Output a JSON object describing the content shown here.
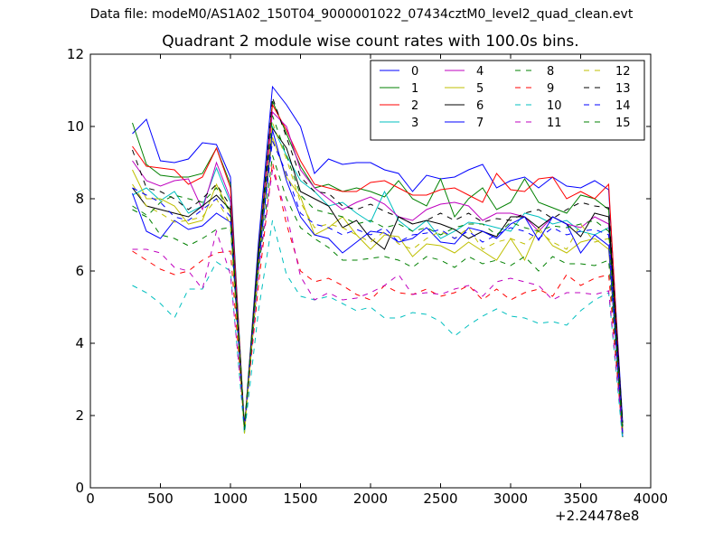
{
  "chart_data": {
    "type": "line",
    "suptitle": "Data file: modeM0/AS1A02_150T04_9000001022_07434cztM0_level2_quad_clean.evt",
    "title": "Quadrant 2 module wise count rates with 100.0s bins.",
    "xlabel": "",
    "ylabel": "",
    "x_offset_label": "+2.24478e8",
    "xlim": [
      0,
      4000
    ],
    "ylim": [
      0,
      12
    ],
    "xticks": [
      "0",
      "500",
      "1000",
      "1500",
      "2000",
      "2500",
      "3000",
      "3500",
      "4000"
    ],
    "yticks": [
      "0",
      "2",
      "4",
      "6",
      "8",
      "10",
      "12"
    ],
    "legend_position": "top-right",
    "x": [
      300,
      400,
      500,
      600,
      700,
      800,
      900,
      1000,
      1100,
      1200,
      1300,
      1400,
      1500,
      1600,
      1700,
      1800,
      1900,
      2000,
      2100,
      2200,
      2300,
      2400,
      2500,
      2600,
      2700,
      2800,
      2900,
      3000,
      3100,
      3200,
      3300,
      3400,
      3500,
      3600,
      3700,
      3800
    ],
    "series": [
      {
        "name": "0",
        "color": "#0000ff",
        "style": "solid",
        "values": [
          9.8,
          10.2,
          9.05,
          9.0,
          9.1,
          9.55,
          9.5,
          8.6,
          1.6,
          6.8,
          11.1,
          10.6,
          10.0,
          8.7,
          9.1,
          8.95,
          9.0,
          9.0,
          8.8,
          8.7,
          8.2,
          8.65,
          8.55,
          8.6,
          8.8,
          8.95,
          8.3,
          8.5,
          8.6,
          8.3,
          8.6,
          8.35,
          8.3,
          8.5,
          8.25,
          1.8
        ]
      },
      {
        "name": "1",
        "color": "#008000",
        "style": "solid",
        "values": [
          10.1,
          8.95,
          8.65,
          8.6,
          8.6,
          8.7,
          9.4,
          8.4,
          1.7,
          6.6,
          10.7,
          9.8,
          8.9,
          8.3,
          8.4,
          8.2,
          8.3,
          8.2,
          8.05,
          8.5,
          8.0,
          7.8,
          8.55,
          7.5,
          8.0,
          8.3,
          7.7,
          7.9,
          8.55,
          7.9,
          7.75,
          7.6,
          8.1,
          8.0,
          7.7,
          1.6
        ]
      },
      {
        "name": "2",
        "color": "#ff0000",
        "style": "solid",
        "values": [
          9.45,
          8.9,
          8.85,
          8.8,
          8.4,
          8.6,
          9.4,
          8.3,
          1.6,
          6.5,
          10.6,
          9.9,
          9.05,
          8.4,
          8.3,
          8.2,
          8.2,
          8.45,
          8.5,
          8.3,
          8.1,
          8.1,
          8.25,
          8.3,
          8.1,
          7.9,
          8.7,
          8.25,
          8.2,
          8.55,
          8.6,
          8.0,
          8.2,
          8.0,
          8.4,
          1.5
        ]
      },
      {
        "name": "3",
        "color": "#00bfbf",
        "style": "solid",
        "values": [
          8.1,
          8.3,
          7.95,
          8.2,
          7.6,
          7.8,
          8.85,
          7.9,
          1.5,
          6.2,
          10.0,
          9.2,
          8.5,
          8.2,
          7.8,
          7.9,
          7.6,
          7.35,
          8.2,
          7.4,
          7.1,
          7.4,
          6.9,
          7.1,
          7.35,
          7.3,
          7.2,
          7.1,
          7.6,
          7.5,
          7.3,
          7.4,
          7.1,
          7.0,
          7.2,
          1.5
        ]
      },
      {
        "name": "4",
        "color": "#bf00bf",
        "style": "solid",
        "values": [
          9.05,
          8.5,
          8.35,
          8.5,
          8.55,
          7.7,
          9.0,
          8.0,
          1.6,
          6.5,
          10.4,
          10.0,
          8.8,
          8.3,
          8.0,
          7.7,
          7.9,
          8.05,
          7.85,
          7.5,
          7.4,
          7.7,
          7.85,
          7.9,
          7.8,
          7.4,
          7.6,
          7.6,
          7.5,
          7.1,
          7.5,
          7.3,
          7.2,
          7.5,
          7.3,
          1.5
        ]
      },
      {
        "name": "5",
        "color": "#bfbf00",
        "style": "solid",
        "values": [
          8.8,
          8.0,
          8.0,
          7.8,
          7.3,
          7.4,
          8.4,
          7.6,
          1.6,
          6.3,
          9.7,
          8.6,
          8.05,
          7.0,
          7.2,
          7.5,
          7.0,
          6.6,
          7.0,
          6.95,
          6.4,
          6.75,
          6.7,
          6.5,
          6.8,
          6.55,
          6.3,
          6.9,
          6.3,
          7.2,
          6.7,
          6.5,
          6.8,
          6.9,
          6.6,
          1.6
        ]
      },
      {
        "name": "6",
        "color": "#000000",
        "style": "solid",
        "values": [
          8.3,
          7.8,
          7.7,
          7.6,
          7.5,
          7.8,
          8.1,
          7.7,
          1.6,
          6.5,
          9.95,
          9.4,
          8.2,
          8.0,
          7.8,
          7.2,
          7.4,
          6.9,
          6.6,
          7.5,
          7.3,
          7.4,
          7.3,
          7.15,
          6.9,
          7.1,
          6.95,
          7.5,
          7.5,
          7.2,
          7.5,
          7.3,
          6.95,
          7.6,
          7.5,
          1.7
        ]
      },
      {
        "name": "7",
        "color": "#0000ff",
        "style": "solid",
        "values": [
          8.15,
          7.1,
          6.9,
          7.4,
          7.15,
          7.25,
          7.6,
          7.35,
          1.6,
          6.1,
          9.9,
          8.5,
          7.5,
          7.0,
          6.9,
          6.5,
          6.8,
          7.1,
          7.05,
          6.8,
          6.9,
          7.2,
          6.8,
          6.75,
          7.2,
          7.1,
          6.9,
          7.3,
          7.5,
          6.85,
          7.5,
          7.3,
          6.5,
          7.0,
          6.7,
          1.4
        ]
      },
      {
        "name": "8",
        "color": "#008000",
        "style": "dashed",
        "values": [
          7.8,
          7.55,
          7.0,
          6.9,
          6.7,
          6.9,
          7.15,
          7.2,
          1.6,
          6.0,
          9.2,
          8.0,
          7.2,
          6.9,
          6.65,
          6.3,
          6.3,
          6.35,
          6.4,
          6.3,
          6.1,
          6.4,
          6.3,
          6.1,
          6.4,
          6.2,
          6.3,
          6.15,
          6.4,
          6.0,
          6.4,
          6.2,
          6.2,
          6.15,
          6.3,
          1.4
        ]
      },
      {
        "name": "9",
        "color": "#ff0000",
        "style": "dashed",
        "values": [
          6.55,
          6.3,
          6.05,
          5.9,
          6.0,
          6.3,
          6.5,
          6.55,
          1.7,
          5.6,
          9.0,
          7.3,
          6.0,
          5.7,
          5.8,
          5.6,
          5.35,
          5.2,
          5.6,
          5.4,
          5.35,
          5.5,
          5.3,
          5.4,
          5.6,
          5.2,
          5.5,
          5.2,
          5.4,
          5.5,
          5.3,
          5.9,
          5.6,
          5.8,
          5.9,
          1.4
        ]
      },
      {
        "name": "10",
        "color": "#00bfbf",
        "style": "dashed",
        "values": [
          5.6,
          5.4,
          5.1,
          4.7,
          5.5,
          5.5,
          6.25,
          6.0,
          1.5,
          4.9,
          7.4,
          5.9,
          5.3,
          5.2,
          5.3,
          5.1,
          4.9,
          5.0,
          4.7,
          4.7,
          4.85,
          4.8,
          4.6,
          4.2,
          4.5,
          4.75,
          4.95,
          4.75,
          4.7,
          4.55,
          4.6,
          4.5,
          4.9,
          5.2,
          5.4,
          1.3
        ]
      },
      {
        "name": "11",
        "color": "#bf00bf",
        "style": "dashed",
        "values": [
          6.6,
          6.6,
          6.5,
          6.1,
          6.0,
          5.5,
          7.1,
          5.9,
          1.7,
          6.0,
          8.8,
          7.6,
          5.85,
          5.2,
          5.4,
          5.2,
          5.25,
          5.4,
          5.6,
          5.9,
          5.35,
          5.4,
          5.35,
          5.5,
          5.6,
          5.3,
          5.7,
          5.8,
          5.7,
          5.6,
          5.2,
          5.4,
          5.4,
          5.35,
          5.45,
          1.5
        ]
      },
      {
        "name": "12",
        "color": "#bfbf00",
        "style": "dashed",
        "values": [
          8.4,
          7.8,
          7.6,
          7.35,
          7.4,
          7.5,
          8.0,
          7.3,
          1.5,
          6.2,
          10.1,
          9.1,
          7.9,
          7.2,
          7.3,
          7.2,
          7.0,
          6.8,
          7.1,
          6.75,
          6.6,
          6.9,
          7.1,
          6.9,
          7.2,
          6.6,
          6.8,
          6.9,
          6.75,
          7.1,
          6.8,
          6.6,
          7.3,
          6.8,
          6.9,
          1.6
        ]
      },
      {
        "name": "13",
        "color": "#000000",
        "style": "dashed",
        "values": [
          9.35,
          8.3,
          8.2,
          8.0,
          7.7,
          8.0,
          8.4,
          7.8,
          1.7,
          6.4,
          10.8,
          9.7,
          8.6,
          8.2,
          8.15,
          7.8,
          7.7,
          7.85,
          7.65,
          7.5,
          7.3,
          7.4,
          7.6,
          7.4,
          7.6,
          7.35,
          7.45,
          7.4,
          7.6,
          7.7,
          7.45,
          7.7,
          7.9,
          7.8,
          7.75,
          1.8
        ]
      },
      {
        "name": "14",
        "color": "#0000ff",
        "style": "dashed",
        "values": [
          8.3,
          8.1,
          7.9,
          7.5,
          7.4,
          7.7,
          8.0,
          7.5,
          1.6,
          6.3,
          9.6,
          8.7,
          7.6,
          7.3,
          7.2,
          7.0,
          7.15,
          7.0,
          7.2,
          6.8,
          7.0,
          7.05,
          7.15,
          6.9,
          7.1,
          6.8,
          7.0,
          7.2,
          7.1,
          6.9,
          7.2,
          7.0,
          7.1,
          7.15,
          7.0,
          1.5
        ]
      },
      {
        "name": "15",
        "color": "#008000",
        "style": "dashed",
        "values": [
          7.7,
          7.5,
          7.9,
          8.1,
          8.0,
          7.9,
          8.3,
          7.6,
          1.6,
          6.3,
          10.3,
          9.2,
          8.1,
          7.7,
          7.6,
          7.5,
          7.3,
          7.4,
          7.2,
          7.3,
          7.1,
          7.2,
          7.0,
          7.2,
          7.3,
          7.3,
          7.0,
          7.35,
          7.2,
          7.1,
          7.25,
          7.2,
          7.3,
          7.4,
          7.1,
          1.5
        ]
      }
    ]
  }
}
